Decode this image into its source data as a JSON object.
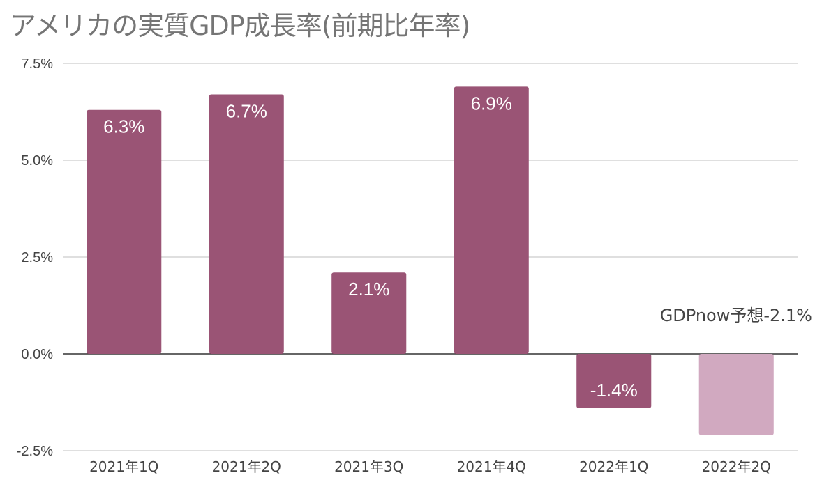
{
  "chart_data": {
    "type": "bar",
    "title": "アメリカの実質GDP成長率(前期比年率)",
    "categories": [
      "2021年1Q",
      "2021年2Q",
      "2021年3Q",
      "2021年4Q",
      "2022年1Q",
      "2022年2Q"
    ],
    "values": [
      6.3,
      6.7,
      2.1,
      6.9,
      -1.4,
      -2.1
    ],
    "data_labels": [
      "6.3%",
      "6.7%",
      "2.1%",
      "6.9%",
      "-1.4%",
      ""
    ],
    "annotation": "GDPnow予想-2.1%",
    "ylim": [
      -2.5,
      7.5
    ],
    "yticks": [
      -2.5,
      0.0,
      2.5,
      5.0,
      7.5
    ],
    "ytick_labels": [
      "-2.5%",
      "0.0%",
      "2.5%",
      "5.0%",
      "7.5%"
    ],
    "grid": true,
    "colors": {
      "bar": "#9a5475",
      "forecast_bar": "#d1a9c0",
      "grid": "#cccccc",
      "zero_line": "#333333"
    }
  }
}
